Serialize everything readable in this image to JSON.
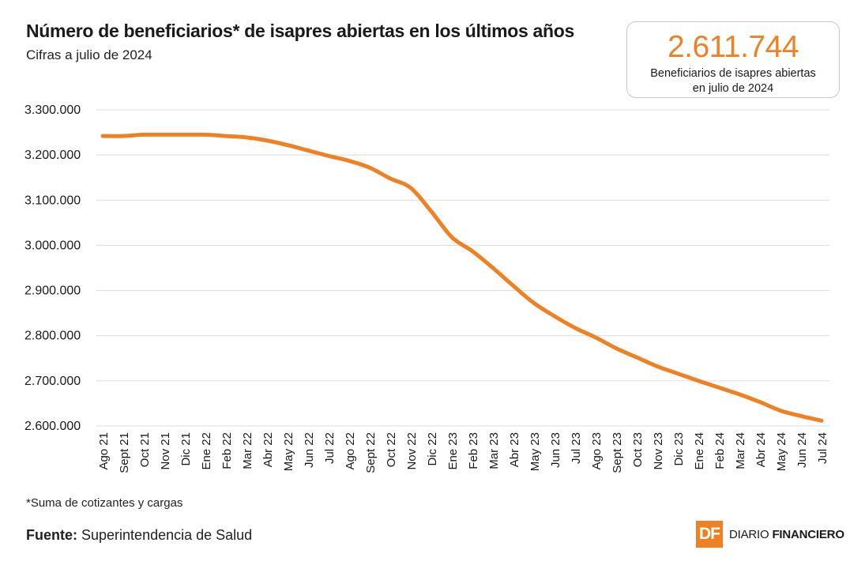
{
  "header": {
    "title": "Número de beneficiarios* de isapres abiertas en los últimos años",
    "subtitle": "Cifras a julio de 2024"
  },
  "kpi": {
    "value": "2.611.744",
    "caption_line1": "Beneficiarios de isapres abiertas",
    "caption_line2": "en julio de 2024"
  },
  "footer": {
    "footnote": "*Suma de cotizantes y cargas",
    "source_label": "Fuente:",
    "source_text": "Superintendencia de Salud",
    "brand_mark": "DF",
    "brand_name_1": "DIARIO",
    "brand_name_2": "FINANCIERO"
  },
  "colors": {
    "line": "#f08122",
    "grid": "#dcdcdc",
    "text": "#1a1a1a"
  },
  "chart_data": {
    "type": "line",
    "ylim": [
      2600000,
      3300000
    ],
    "yticks": [
      2600000,
      2700000,
      2800000,
      2900000,
      3000000,
      3100000,
      3200000,
      3300000
    ],
    "ytick_labels": [
      "2.600.000",
      "2.700.000",
      "2.800.000",
      "2.900.000",
      "3.000.000",
      "3.100.000",
      "3.200.000",
      "3.300.000"
    ],
    "grid": "horizontal",
    "categories": [
      "Ago 21",
      "Sept 21",
      "Oct 21",
      "Nov 21",
      "Dic 21",
      "Ene 22",
      "Feb 22",
      "Mar 22",
      "Abr 22",
      "May 22",
      "Jun 22",
      "Jul 22",
      "Ago 22",
      "Sept 22",
      "Oct 22",
      "Nov 22",
      "Dic 22",
      "Ene 23",
      "Feb 23",
      "Mar 23",
      "Abr 23",
      "May 23",
      "Jun 23",
      "Jul 23",
      "Ago 23",
      "Sept 23",
      "Oct 23",
      "Nov 23",
      "Dic 23",
      "Ene 24",
      "Feb 24",
      "Mar 24",
      "Abr 24",
      "May 24",
      "Jun 24",
      "Jul 24"
    ],
    "series": [
      {
        "values": [
          3242000,
          3242000,
          3245000,
          3245000,
          3245000,
          3245000,
          3242000,
          3239000,
          3232000,
          3222000,
          3210000,
          3198000,
          3187000,
          3172000,
          3148000,
          3127000,
          3075000,
          3018000,
          2987000,
          2950000,
          2910000,
          2872000,
          2843000,
          2817000,
          2796000,
          2772000,
          2752000,
          2732000,
          2716000,
          2700000,
          2685000,
          2670000,
          2653000,
          2634000,
          2622000,
          2611744
        ]
      }
    ]
  }
}
